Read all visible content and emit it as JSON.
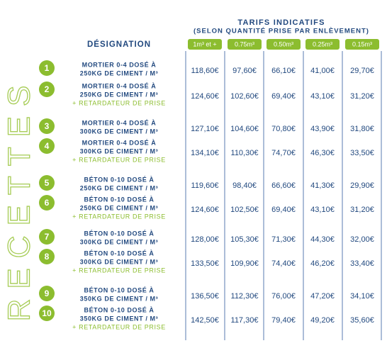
{
  "side_title": "RECETTES",
  "header": {
    "designation": "DÉSIGNATION",
    "title": "TARIFS INDICATIFS",
    "subtitle": "(SELON QUANTITÉ PRISE PAR ENLÈVEMENT)",
    "columns": [
      "1m³ et +",
      "0.75m³",
      "0.50m³",
      "0.25m³",
      "0.15m³"
    ]
  },
  "rows": [
    {
      "number": "1",
      "lines": [
        "MORTIER 0-4 DOSÉ À",
        "250KG DE CIMENT / M³"
      ],
      "prices": [
        "118,60€",
        "97,60€",
        "66,10€",
        "41,00€",
        "29,70€"
      ]
    },
    {
      "number": "2",
      "lines": [
        "MORTIER 0-4 DOSÉ À",
        "250KG DE CIMENT / M³"
      ],
      "extra": "+ RETARDATEUR DE PRISE",
      "prices": [
        "124,60€",
        "102,60€",
        "69,40€",
        "43,10€",
        "31,20€"
      ]
    },
    {
      "number": "3",
      "lines": [
        "MORTIER 0-4 DOSÉ À",
        "300KG DE CIMENT / M³"
      ],
      "prices": [
        "127,10€",
        "104,60€",
        "70,80€",
        "43,90€",
        "31,80€"
      ]
    },
    {
      "number": "4",
      "lines": [
        "MORTIER 0-4 DOSÉ À",
        "300KG DE CIMENT / M³"
      ],
      "extra": "+ RETARDATEUR DE PRISE",
      "prices": [
        "134,10€",
        "110,30€",
        "74,70€",
        "46,30€",
        "33,50€"
      ]
    },
    {
      "number": "5",
      "lines": [
        "BÉTON 0-10 DOSÉ À",
        "250KG DE CIMENT / M³"
      ],
      "prices": [
        "119,60€",
        "98,40€",
        "66,60€",
        "41,30€",
        "29,90€"
      ]
    },
    {
      "number": "6",
      "lines": [
        "BÉTON 0-10 DOSÉ À",
        "250KG DE CIMENT / M³"
      ],
      "extra": "+ RETARDATEUR DE PRISE",
      "prices": [
        "124,60€",
        "102,50€",
        "69,40€",
        "43,10€",
        "31,20€"
      ]
    },
    {
      "number": "7",
      "lines": [
        "BÉTON 0-10 DOSÉ À",
        "300KG DE CIMENT / M³"
      ],
      "prices": [
        "128,00€",
        "105,30€",
        "71,30€",
        "44,30€",
        "32,00€"
      ]
    },
    {
      "number": "8",
      "lines": [
        "BÉTON 0-10 DOSÉ À",
        "300KG DE CIMENT / M³"
      ],
      "extra": "+ RETARDATEUR DE PRISE",
      "prices": [
        "133,50€",
        "109,90€",
        "74,40€",
        "46,20€",
        "33,40€"
      ]
    },
    {
      "number": "9",
      "lines": [
        "BÉTON 0-10 DOSÉ À",
        "350KG DE CIMENT / M³"
      ],
      "prices": [
        "136,50€",
        "112,30€",
        "76,00€",
        "47,20€",
        "34,10€"
      ]
    },
    {
      "number": "10",
      "lines": [
        "BÉTON 0-10 DOSÉ À",
        "350KG DE CIMENT / M³"
      ],
      "extra": "+ RETARDATEUR DE PRISE",
      "prices": [
        "142,50€",
        "117,30€",
        "79,40€",
        "49,20€",
        "35,60€"
      ]
    }
  ]
}
